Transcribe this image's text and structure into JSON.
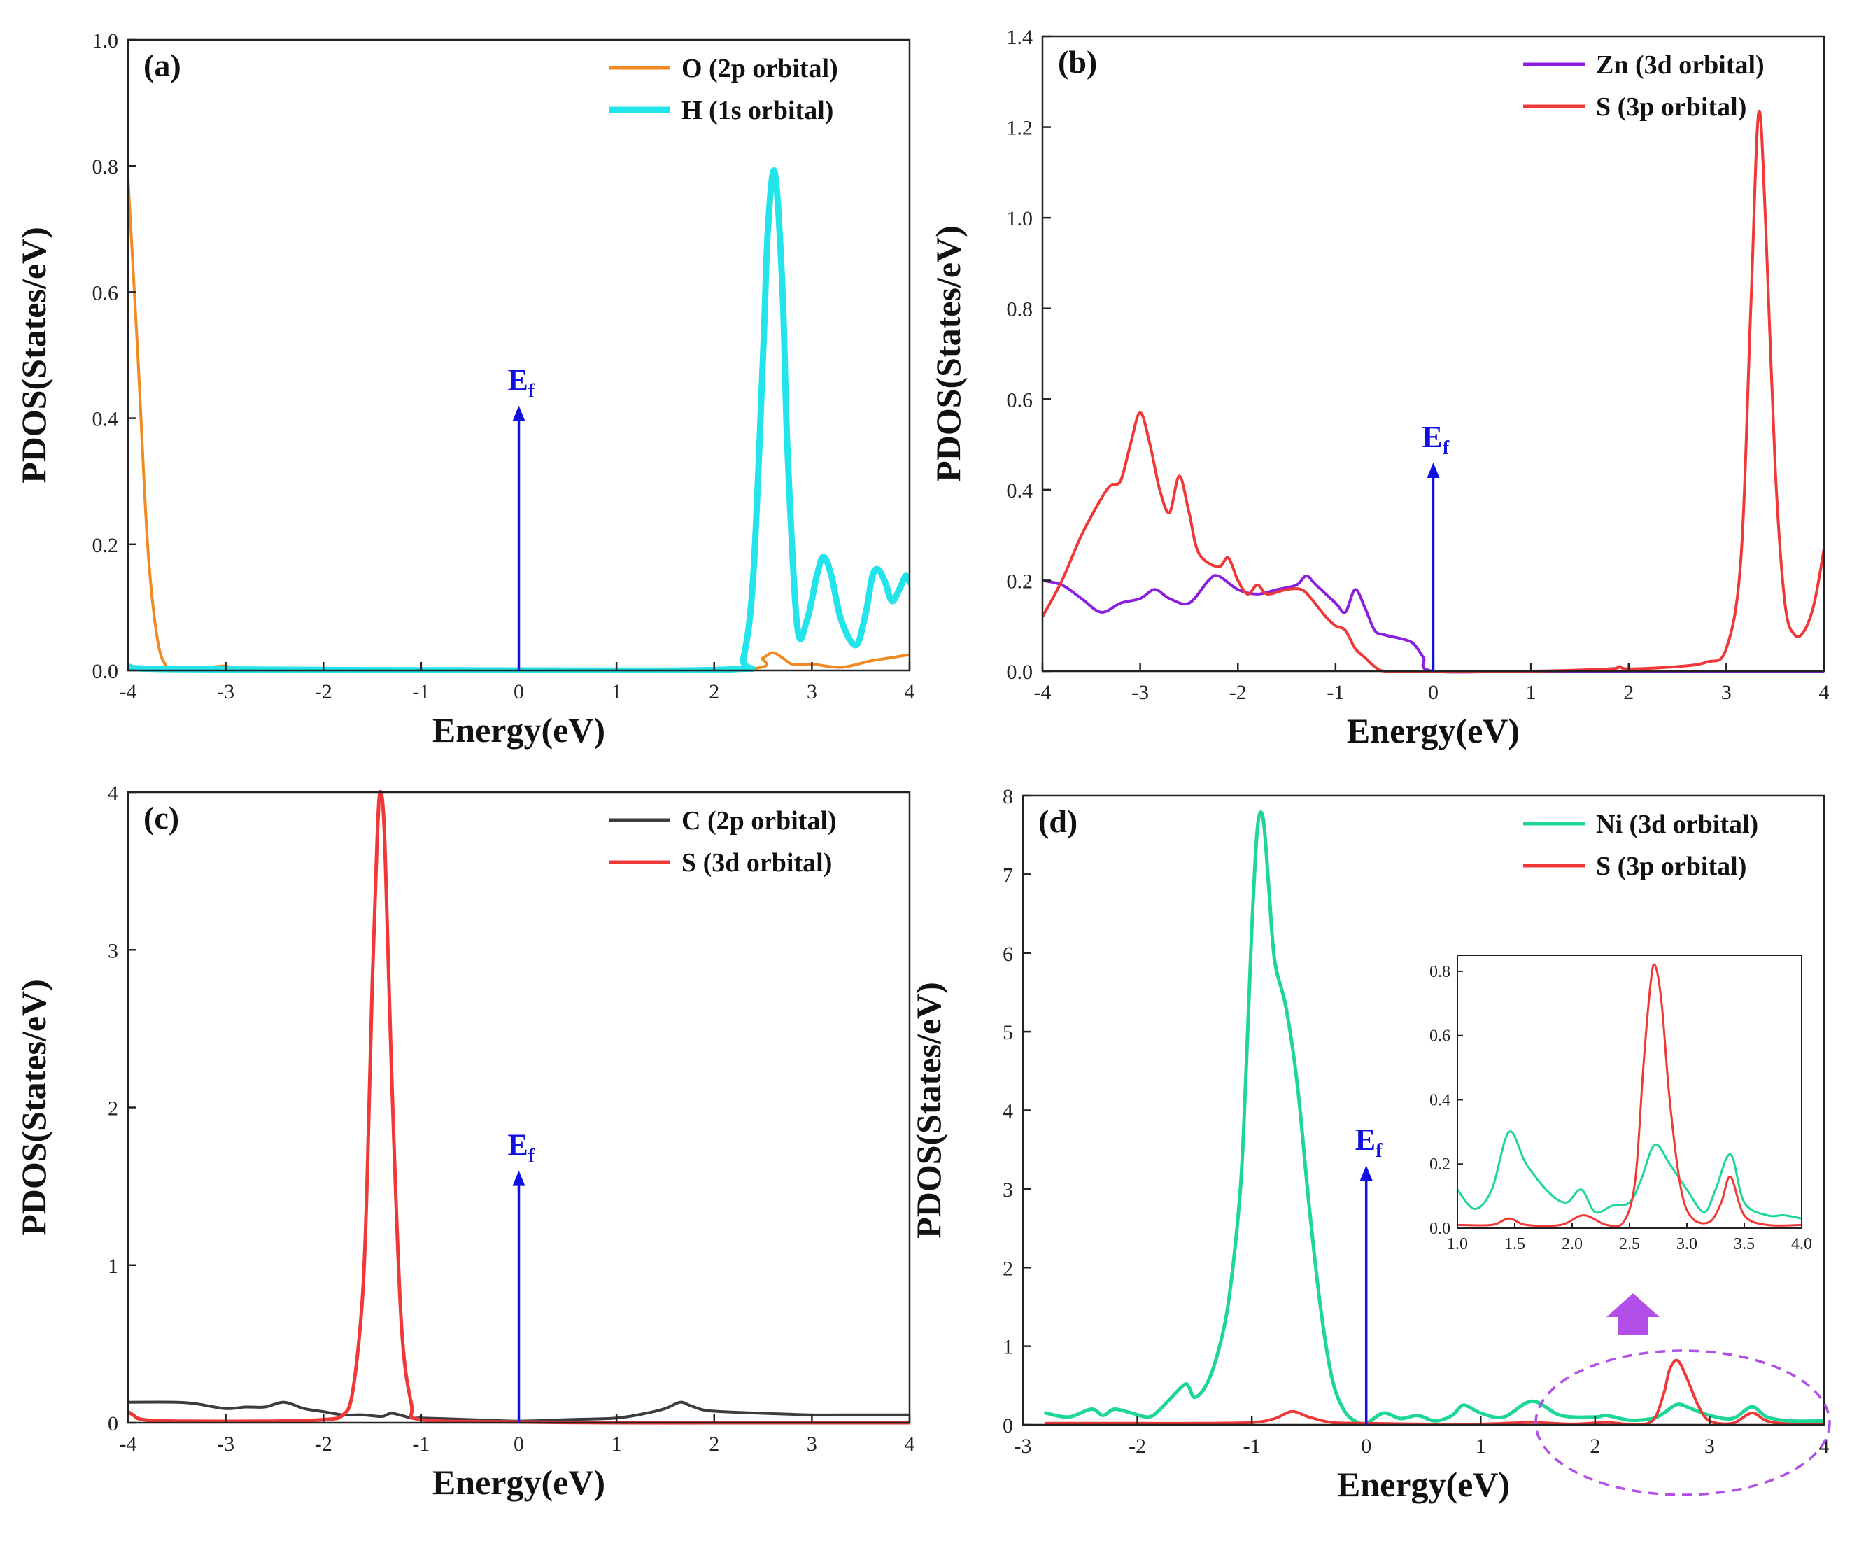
{
  "colors": {
    "fermi_arrow": "#1010e0",
    "annotation": "#b14fe8",
    "axis": "#222222"
  },
  "fermi_label": "E",
  "fermi_subscript": "f",
  "chart_data": [
    {
      "type": "line",
      "panel": "(a)",
      "xlabel": "Energy(eV)",
      "ylabel": "PDOS(States/eV)",
      "xlim": [
        -4,
        4
      ],
      "ylim": [
        0,
        1.0
      ],
      "xticks": [
        -4,
        -3,
        -2,
        -1,
        0,
        1,
        2,
        3,
        4
      ],
      "yticks": [
        0.0,
        0.2,
        0.4,
        0.6,
        0.8,
        1.0
      ],
      "xtick_labels": [
        "-4",
        "-3",
        "-2",
        "-1",
        "0",
        "1",
        "2",
        "3",
        "4"
      ],
      "ytick_labels": [
        "0.0",
        "0.2",
        "0.4",
        "0.6",
        "0.8",
        "1.0"
      ],
      "legend": "top-right",
      "fermi_arrow_top": 0.42,
      "series": [
        {
          "name": "O (2p orbital)",
          "color": "#f08a24",
          "width": 4,
          "x": [
            -4,
            -3.9,
            -3.8,
            -3.7,
            -3.6,
            -3.5,
            -3.3,
            -3.1,
            -3.0,
            -2.9,
            -2.5,
            0,
            2.3,
            2.5,
            2.6,
            2.7,
            2.8,
            3.0,
            3.3,
            3.6,
            3.8,
            4.0
          ],
          "y": [
            0.78,
            0.5,
            0.2,
            0.05,
            0.005,
            0.002,
            0.003,
            0.006,
            0.007,
            0.004,
            0.001,
            0.0,
            0.002,
            0.02,
            0.028,
            0.02,
            0.01,
            0.01,
            0.005,
            0.015,
            0.02,
            0.025
          ]
        },
        {
          "name": "H (1s orbital)",
          "color": "#22e4ea",
          "width": 9,
          "x": [
            -4,
            -3.5,
            0,
            2.2,
            2.3,
            2.4,
            2.5,
            2.55,
            2.62,
            2.7,
            2.75,
            2.85,
            2.95,
            3.05,
            3.12,
            3.2,
            3.3,
            3.45,
            3.55,
            3.62,
            3.68,
            3.75,
            3.82,
            3.9,
            3.96,
            4.0
          ],
          "y": [
            0.006,
            0.002,
            0.0,
            0.002,
            0.02,
            0.15,
            0.5,
            0.7,
            0.79,
            0.6,
            0.35,
            0.07,
            0.08,
            0.15,
            0.18,
            0.15,
            0.08,
            0.04,
            0.09,
            0.15,
            0.16,
            0.14,
            0.11,
            0.13,
            0.15,
            0.14
          ]
        }
      ]
    },
    {
      "type": "line",
      "panel": "(b)",
      "xlabel": "Energy(eV)",
      "ylabel": "PDOS(States/eV)",
      "xlim": [
        -4,
        4
      ],
      "ylim": [
        0,
        1.4
      ],
      "xticks": [
        -4,
        -3,
        -2,
        -1,
        0,
        1,
        2,
        3,
        4
      ],
      "yticks": [
        0.0,
        0.2,
        0.4,
        0.6,
        0.8,
        1.0,
        1.2,
        1.4
      ],
      "xtick_labels": [
        "-4",
        "-3",
        "-2",
        "-1",
        "0",
        "1",
        "2",
        "3",
        "4"
      ],
      "ytick_labels": [
        "0.0",
        "0.2",
        "0.4",
        "0.6",
        "0.8",
        "1.0",
        "1.2",
        "1.4"
      ],
      "legend": "top-right",
      "fermi_arrow_top": 0.46,
      "series": [
        {
          "name": "Zn (3d orbital)",
          "color": "#8a1fe0",
          "width": 4,
          "x": [
            -4,
            -3.8,
            -3.6,
            -3.4,
            -3.2,
            -3.0,
            -2.85,
            -2.7,
            -2.5,
            -2.3,
            -2.2,
            -2.0,
            -1.8,
            -1.6,
            -1.4,
            -1.3,
            -1.2,
            -1.0,
            -0.9,
            -0.8,
            -0.7,
            -0.6,
            -0.5,
            -0.3,
            -0.2,
            -0.1,
            0.0,
            1.0,
            2.0,
            3.0,
            4.0
          ],
          "y": [
            0.2,
            0.19,
            0.16,
            0.13,
            0.15,
            0.16,
            0.18,
            0.16,
            0.15,
            0.2,
            0.21,
            0.18,
            0.17,
            0.18,
            0.19,
            0.21,
            0.19,
            0.15,
            0.13,
            0.18,
            0.14,
            0.09,
            0.08,
            0.07,
            0.06,
            0.03,
            0.0,
            0.0,
            0.0,
            0.0,
            0.0
          ]
        },
        {
          "name": "S (3p orbital)",
          "color": "#f03838",
          "width": 4,
          "x": [
            -4,
            -3.8,
            -3.6,
            -3.4,
            -3.3,
            -3.2,
            -3.1,
            -3.0,
            -2.9,
            -2.8,
            -2.7,
            -2.6,
            -2.5,
            -2.4,
            -2.2,
            -2.1,
            -2.0,
            -1.9,
            -1.8,
            -1.7,
            -1.5,
            -1.35,
            -1.25,
            -1.1,
            -1.0,
            -0.9,
            -0.8,
            -0.7,
            -0.6,
            -0.5,
            -0.2,
            0,
            1.0,
            1.8,
            1.9,
            2.0,
            2.5,
            2.8,
            3.0,
            3.15,
            3.25,
            3.33,
            3.4,
            3.5,
            3.6,
            3.7,
            3.8,
            3.9,
            4.0
          ],
          "y": [
            0.12,
            0.2,
            0.3,
            0.38,
            0.41,
            0.42,
            0.5,
            0.57,
            0.5,
            0.4,
            0.35,
            0.43,
            0.35,
            0.26,
            0.23,
            0.25,
            0.2,
            0.17,
            0.19,
            0.17,
            0.18,
            0.18,
            0.16,
            0.12,
            0.1,
            0.09,
            0.05,
            0.03,
            0.01,
            0.0,
            0.0,
            0.0,
            0.0,
            0.005,
            0.01,
            0.005,
            0.01,
            0.02,
            0.05,
            0.25,
            0.8,
            1.23,
            1.0,
            0.45,
            0.15,
            0.08,
            0.09,
            0.15,
            0.27
          ]
        }
      ]
    },
    {
      "type": "line",
      "panel": "(c)",
      "xlabel": "Energy(eV)",
      "ylabel": "PDOS(States/eV)",
      "xlim": [
        -4,
        4
      ],
      "ylim": [
        0,
        4
      ],
      "xticks": [
        -4,
        -3,
        -2,
        -1,
        0,
        1,
        2,
        3,
        4
      ],
      "yticks": [
        0,
        1,
        2,
        3,
        4
      ],
      "xtick_labels": [
        "-4",
        "-3",
        "-2",
        "-1",
        "0",
        "1",
        "2",
        "3",
        "4"
      ],
      "ytick_labels": [
        "0",
        "1",
        "2",
        "3",
        "4"
      ],
      "legend": "top-right",
      "fermi_arrow_top": 1.6,
      "series": [
        {
          "name": "C (2p orbital)",
          "color": "#3c3c3c",
          "width": 4,
          "x": [
            -4,
            -3.5,
            -3.3,
            -3.0,
            -2.8,
            -2.6,
            -2.4,
            -2.2,
            -2.0,
            -1.8,
            -1.6,
            -1.4,
            -1.3,
            -1.1,
            -1.0,
            -0.5,
            0,
            0.5,
            1.0,
            1.3,
            1.5,
            1.65,
            1.75,
            1.9,
            2.1,
            2.5,
            3.0,
            3.5,
            4.0
          ],
          "y": [
            0.13,
            0.13,
            0.12,
            0.09,
            0.1,
            0.1,
            0.13,
            0.09,
            0.07,
            0.05,
            0.05,
            0.04,
            0.06,
            0.03,
            0.03,
            0.02,
            0.01,
            0.02,
            0.03,
            0.06,
            0.09,
            0.13,
            0.11,
            0.08,
            0.07,
            0.06,
            0.05,
            0.05,
            0.05
          ]
        },
        {
          "name": "S (3d orbital)",
          "color": "#f03838",
          "width": 5,
          "x": [
            -4,
            -3.95,
            -3.85,
            -3.5,
            -2.5,
            -2.0,
            -1.8,
            -1.7,
            -1.6,
            -1.55,
            -1.5,
            -1.45,
            -1.42,
            -1.38,
            -1.34,
            -1.28,
            -1.2,
            -1.1,
            -1.0,
            0,
            1.0,
            2.0,
            3.0,
            4.0
          ],
          "y": [
            0.07,
            0.05,
            0.02,
            0.01,
            0.01,
            0.02,
            0.05,
            0.2,
            0.8,
            1.6,
            2.8,
            3.7,
            4.0,
            3.8,
            3.0,
            1.8,
            0.6,
            0.12,
            0.02,
            0.005,
            0.0,
            0.0,
            0.0,
            0.0
          ]
        }
      ]
    },
    {
      "type": "line",
      "panel": "(d)",
      "xlabel": "Energy(eV)",
      "ylabel": "PDOS(States/eV)",
      "xlim": [
        -3,
        4
      ],
      "ylim": [
        0,
        8
      ],
      "xticks": [
        -3,
        -2,
        -1,
        0,
        1,
        2,
        3,
        4
      ],
      "yticks": [
        0,
        1,
        2,
        3,
        4,
        5,
        6,
        7,
        8
      ],
      "xtick_labels": [
        "-3",
        "-2",
        "-1",
        "0",
        "1",
        "2",
        "3",
        "4"
      ],
      "ytick_labels": [
        "0",
        "1",
        "2",
        "3",
        "4",
        "5",
        "6",
        "7",
        "8"
      ],
      "legend": "top-right",
      "fermi_arrow_top": 3.3,
      "series": [
        {
          "name": "Ni (3d orbital)",
          "color": "#1ed696",
          "width": 5,
          "x": [
            -2.8,
            -2.6,
            -2.4,
            -2.3,
            -2.2,
            -2.05,
            -1.9,
            -1.8,
            -1.6,
            -1.55,
            -1.5,
            -1.4,
            -1.3,
            -1.2,
            -1.1,
            -1.05,
            -1.0,
            -0.95,
            -0.9,
            -0.85,
            -0.8,
            -0.7,
            -0.6,
            -0.5,
            -0.4,
            -0.3,
            -0.2,
            -0.1,
            0.0,
            0.15,
            0.3,
            0.45,
            0.6,
            0.75,
            0.85,
            1.0,
            1.2,
            1.45,
            1.7,
            2.0,
            2.1,
            2.3,
            2.5,
            2.6,
            2.72,
            2.85,
            3.0,
            3.2,
            3.37,
            3.5,
            3.7,
            4.0
          ],
          "y": [
            0.15,
            0.1,
            0.2,
            0.12,
            0.2,
            0.15,
            0.1,
            0.2,
            0.5,
            0.48,
            0.35,
            0.5,
            0.9,
            1.6,
            3.0,
            4.5,
            6.3,
            7.6,
            7.7,
            6.8,
            5.9,
            5.3,
            4.3,
            2.8,
            1.5,
            0.6,
            0.2,
            0.05,
            0.02,
            0.15,
            0.08,
            0.12,
            0.05,
            0.12,
            0.25,
            0.15,
            0.1,
            0.3,
            0.12,
            0.1,
            0.12,
            0.06,
            0.08,
            0.15,
            0.26,
            0.2,
            0.12,
            0.08,
            0.23,
            0.1,
            0.05,
            0.05
          ]
        },
        {
          "name": "S (3p orbital)",
          "color": "#f03838",
          "width": 4,
          "x": [
            -2.8,
            -2.0,
            -1.5,
            -1.0,
            -0.8,
            -0.65,
            -0.5,
            -0.3,
            0.0,
            0.5,
            1.0,
            1.45,
            1.8,
            2.1,
            2.3,
            2.5,
            2.6,
            2.65,
            2.72,
            2.8,
            2.9,
            3.0,
            3.2,
            3.37,
            3.5,
            3.7,
            4.0
          ],
          "y": [
            0.02,
            0.02,
            0.02,
            0.03,
            0.08,
            0.17,
            0.1,
            0.03,
            0.02,
            0.01,
            0.01,
            0.03,
            0.01,
            0.03,
            0.01,
            0.05,
            0.4,
            0.7,
            0.82,
            0.6,
            0.25,
            0.05,
            0.02,
            0.15,
            0.05,
            0.01,
            0.01
          ]
        }
      ]
    },
    {
      "type": "line",
      "panel": "(d) inset",
      "xlim": [
        1.0,
        4.0
      ],
      "ylim": [
        0,
        0.85
      ],
      "xticks": [
        1.0,
        1.5,
        2.0,
        2.5,
        3.0,
        3.5,
        4.0
      ],
      "yticks": [
        0.0,
        0.2,
        0.4,
        0.6,
        0.8
      ],
      "xtick_labels": [
        "1.0",
        "1.5",
        "2.0",
        "2.5",
        "3.0",
        "3.5",
        "4.0"
      ],
      "ytick_labels": [
        "0.0",
        "0.2",
        "0.4",
        "0.6",
        "0.8"
      ],
      "series": [
        {
          "name": "Ni (3d orbital)",
          "color": "#1ed696",
          "width": 3,
          "x": [
            1.0,
            1.15,
            1.3,
            1.45,
            1.6,
            1.8,
            1.95,
            2.08,
            2.2,
            2.35,
            2.5,
            2.6,
            2.72,
            2.85,
            3.0,
            3.15,
            3.25,
            3.38,
            3.5,
            3.7,
            3.85,
            4.0
          ],
          "y": [
            0.12,
            0.06,
            0.12,
            0.3,
            0.2,
            0.11,
            0.08,
            0.12,
            0.05,
            0.07,
            0.08,
            0.15,
            0.26,
            0.2,
            0.12,
            0.05,
            0.12,
            0.23,
            0.08,
            0.04,
            0.04,
            0.03
          ]
        },
        {
          "name": "S (3p orbital)",
          "color": "#f03838",
          "width": 3,
          "x": [
            1.0,
            1.3,
            1.45,
            1.6,
            1.9,
            2.1,
            2.3,
            2.45,
            2.55,
            2.62,
            2.68,
            2.72,
            2.78,
            2.85,
            2.95,
            3.05,
            3.2,
            3.3,
            3.38,
            3.5,
            3.7,
            4.0
          ],
          "y": [
            0.01,
            0.01,
            0.03,
            0.01,
            0.01,
            0.04,
            0.01,
            0.02,
            0.15,
            0.5,
            0.75,
            0.82,
            0.7,
            0.4,
            0.12,
            0.03,
            0.02,
            0.08,
            0.16,
            0.04,
            0.01,
            0.01
          ]
        }
      ]
    }
  ]
}
